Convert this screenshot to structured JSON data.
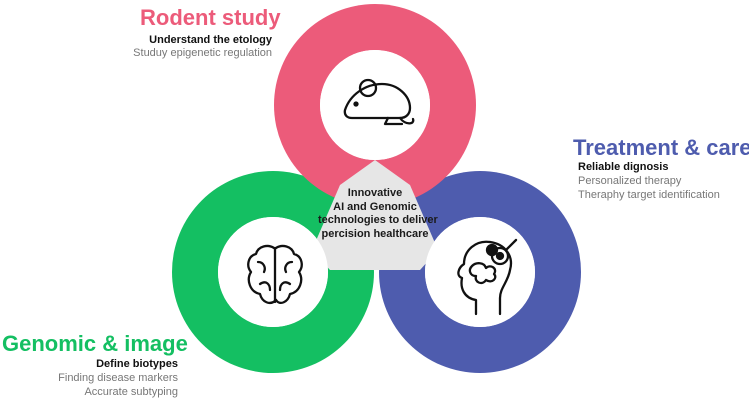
{
  "colors": {
    "rodent": "#EC5B7A",
    "treatment": "#4E5CAE",
    "genomic": "#14BF62",
    "center": "#E6E6E6"
  },
  "rodent": {
    "title": "Rodent study",
    "line1": "Understand the etology",
    "line2": "Studuy epigenetic regulation",
    "icon": "mouse-icon"
  },
  "treatment": {
    "title": "Treatment & care",
    "line1": "Reliable dignosis",
    "line2": "Personalized therapy",
    "line3": "Theraphy target identification",
    "icon": "head-gears-icon"
  },
  "genomic": {
    "title": "Genomic & image",
    "line1": "Define biotypes",
    "line2": "Finding disease markers",
    "line3": "Accurate subtyping",
    "icon": "brain-icon"
  },
  "center": {
    "lines": [
      "Innovative",
      "AI and Genomic",
      "technologies to deliver",
      "percision healthcare"
    ]
  }
}
